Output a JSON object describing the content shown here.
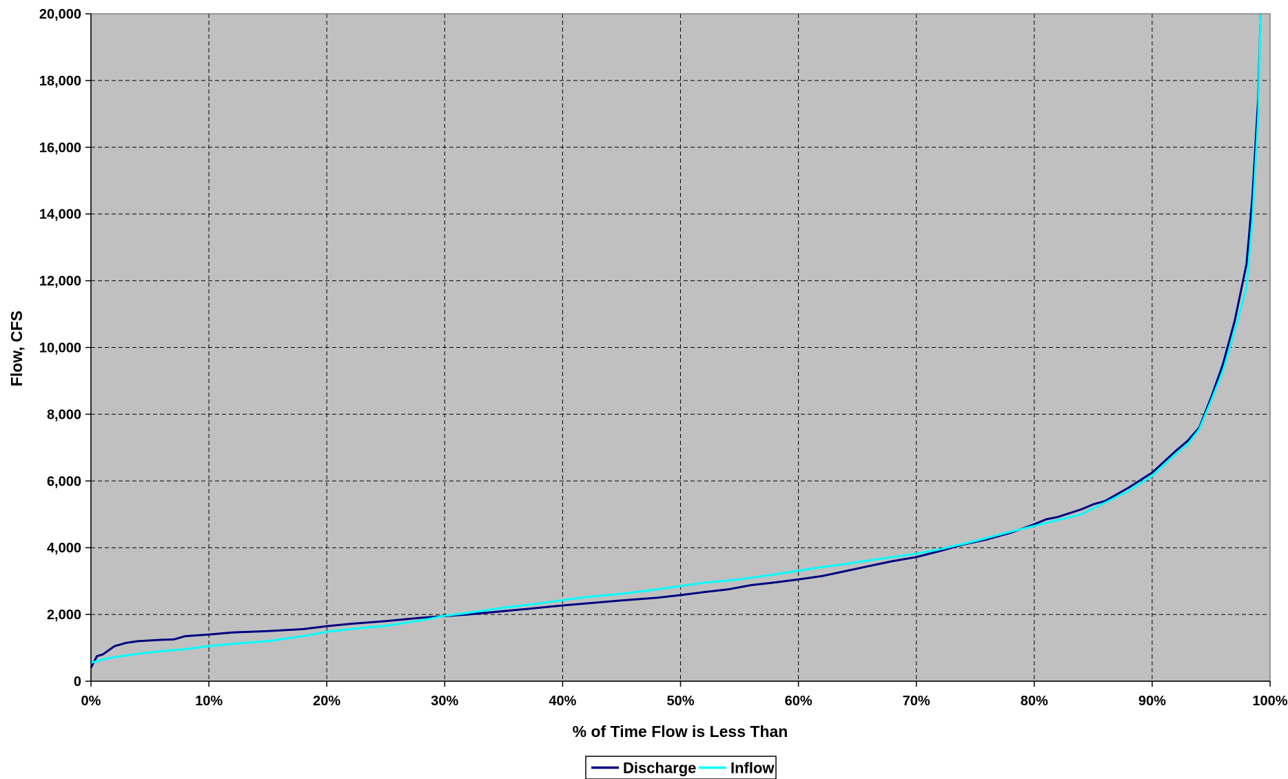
{
  "chart_data": {
    "type": "line",
    "title": "",
    "xlabel": "% of Time Flow is Less Than",
    "ylabel": "Flow, CFS",
    "xlim": [
      0,
      100
    ],
    "ylim": [
      0,
      20000
    ],
    "x_ticks": [
      "0%",
      "10%",
      "20%",
      "30%",
      "40%",
      "50%",
      "60%",
      "70%",
      "80%",
      "90%",
      "100%"
    ],
    "y_ticks": [
      "0",
      "2,000",
      "4,000",
      "6,000",
      "8,000",
      "10,000",
      "12,000",
      "14,000",
      "16,000",
      "18,000",
      "20,000"
    ],
    "grid": true,
    "plot_background": "#c0c0c0",
    "legend_position": "bottom-center",
    "series": [
      {
        "name": "Discharge",
        "color": "#000080",
        "points": [
          [
            0,
            400
          ],
          [
            0.5,
            750
          ],
          [
            1,
            800
          ],
          [
            2,
            1050
          ],
          [
            3,
            1150
          ],
          [
            4,
            1200
          ],
          [
            5,
            1220
          ],
          [
            6,
            1240
          ],
          [
            7,
            1250
          ],
          [
            8,
            1350
          ],
          [
            10,
            1400
          ],
          [
            12,
            1460
          ],
          [
            15,
            1500
          ],
          [
            18,
            1560
          ],
          [
            20,
            1650
          ],
          [
            22,
            1720
          ],
          [
            25,
            1800
          ],
          [
            28,
            1900
          ],
          [
            30,
            1950
          ],
          [
            32,
            2000
          ],
          [
            35,
            2100
          ],
          [
            38,
            2200
          ],
          [
            40,
            2270
          ],
          [
            42,
            2330
          ],
          [
            45,
            2420
          ],
          [
            48,
            2500
          ],
          [
            50,
            2580
          ],
          [
            52,
            2670
          ],
          [
            54,
            2750
          ],
          [
            56,
            2880
          ],
          [
            58,
            2960
          ],
          [
            60,
            3050
          ],
          [
            62,
            3150
          ],
          [
            64,
            3300
          ],
          [
            66,
            3450
          ],
          [
            68,
            3600
          ],
          [
            70,
            3720
          ],
          [
            72,
            3900
          ],
          [
            74,
            4100
          ],
          [
            76,
            4250
          ],
          [
            78,
            4450
          ],
          [
            80,
            4700
          ],
          [
            81,
            4850
          ],
          [
            82,
            4920
          ],
          [
            84,
            5150
          ],
          [
            85,
            5300
          ],
          [
            86,
            5400
          ],
          [
            88,
            5800
          ],
          [
            90,
            6250
          ],
          [
            92,
            6900
          ],
          [
            93,
            7200
          ],
          [
            94,
            7600
          ],
          [
            95,
            8500
          ],
          [
            96,
            9500
          ],
          [
            97,
            10800
          ],
          [
            98,
            12500
          ],
          [
            98.5,
            14500
          ],
          [
            99,
            17500
          ],
          [
            99.2,
            20000
          ]
        ]
      },
      {
        "name": "Inflow",
        "color": "#00ffff",
        "points": [
          [
            0,
            550
          ],
          [
            1,
            650
          ],
          [
            2,
            720
          ],
          [
            4,
            820
          ],
          [
            6,
            900
          ],
          [
            8,
            960
          ],
          [
            10,
            1050
          ],
          [
            12,
            1120
          ],
          [
            15,
            1200
          ],
          [
            18,
            1350
          ],
          [
            20,
            1480
          ],
          [
            22,
            1560
          ],
          [
            25,
            1660
          ],
          [
            28,
            1820
          ],
          [
            30,
            1960
          ],
          [
            32,
            2050
          ],
          [
            35,
            2200
          ],
          [
            38,
            2330
          ],
          [
            40,
            2430
          ],
          [
            42,
            2520
          ],
          [
            45,
            2620
          ],
          [
            48,
            2750
          ],
          [
            50,
            2850
          ],
          [
            52,
            2950
          ],
          [
            55,
            3050
          ],
          [
            58,
            3200
          ],
          [
            60,
            3310
          ],
          [
            62,
            3420
          ],
          [
            64,
            3510
          ],
          [
            66,
            3620
          ],
          [
            68,
            3720
          ],
          [
            70,
            3820
          ],
          [
            72,
            3950
          ],
          [
            75,
            4200
          ],
          [
            78,
            4480
          ],
          [
            80,
            4650
          ],
          [
            82,
            4830
          ],
          [
            84,
            5000
          ],
          [
            86,
            5350
          ],
          [
            88,
            5700
          ],
          [
            90,
            6150
          ],
          [
            92,
            6800
          ],
          [
            93,
            7100
          ],
          [
            94,
            7550
          ],
          [
            95,
            8400
          ],
          [
            96,
            9300
          ],
          [
            97,
            10500
          ],
          [
            98,
            11800
          ],
          [
            98.5,
            13800
          ],
          [
            99,
            17000
          ],
          [
            99.2,
            20000
          ]
        ]
      }
    ]
  }
}
